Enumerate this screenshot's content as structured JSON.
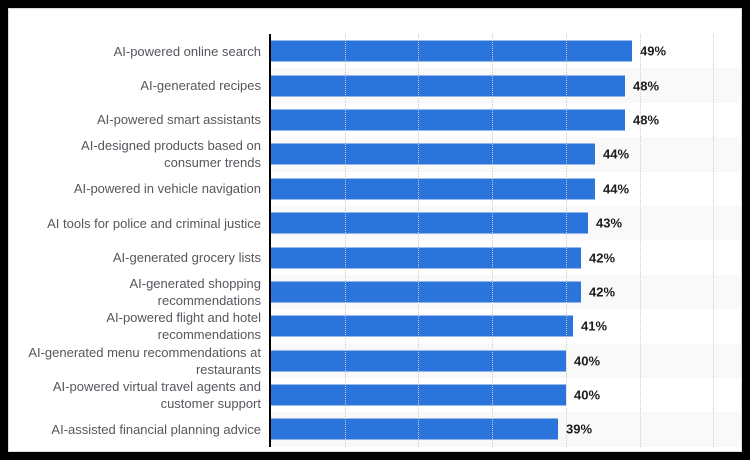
{
  "chart_data": {
    "type": "bar",
    "orientation": "horizontal",
    "title": "",
    "xlabel": "",
    "ylabel": "",
    "xlim": [
      0,
      64
    ],
    "gridlines": [
      10,
      20,
      30,
      40,
      50,
      60
    ],
    "grid_style": "dotted-vertical",
    "legend": "none",
    "value_suffix": "%",
    "categories": [
      "AI-powered online search",
      "AI-generated recipes",
      "AI-powered smart assistants",
      "AI-designed products based on consumer trends",
      "AI-powered in vehicle navigation",
      "AI tools for police and criminal justice",
      "AI-generated grocery lists",
      "AI-generated shopping recommendations",
      "AI-powered flight and hotel recommendations",
      "AI-generated menu recommendations at restaurants",
      "AI-powered virtual travel agents and customer support",
      "AI-assisted financial planning advice"
    ],
    "values": [
      49,
      48,
      48,
      44,
      44,
      43,
      42,
      42,
      41,
      40,
      40,
      39
    ],
    "rows": [
      {
        "label_lines": [
          "AI-powered online search"
        ],
        "value": 49,
        "value_label": "49%"
      },
      {
        "label_lines": [
          "AI-generated recipes"
        ],
        "value": 48,
        "value_label": "48%"
      },
      {
        "label_lines": [
          "AI-powered smart assistants"
        ],
        "value": 48,
        "value_label": "48%"
      },
      {
        "label_lines": [
          "AI-designed products based on",
          "consumer trends"
        ],
        "value": 44,
        "value_label": "44%"
      },
      {
        "label_lines": [
          "AI-powered in vehicle navigation"
        ],
        "value": 44,
        "value_label": "44%"
      },
      {
        "label_lines": [
          "AI tools for police and criminal justice"
        ],
        "value": 43,
        "value_label": "43%"
      },
      {
        "label_lines": [
          "AI-generated grocery lists"
        ],
        "value": 42,
        "value_label": "42%"
      },
      {
        "label_lines": [
          "AI-generated shopping",
          "recommendations"
        ],
        "value": 42,
        "value_label": "42%"
      },
      {
        "label_lines": [
          "AI-powered flight and hotel",
          "recommendations"
        ],
        "value": 41,
        "value_label": "41%"
      },
      {
        "label_lines": [
          "AI-generated menu recommendations at",
          "restaurants"
        ],
        "value": 40,
        "value_label": "40%"
      },
      {
        "label_lines": [
          "AI-powered virtual travel agents and",
          "customer support"
        ],
        "value": 40,
        "value_label": "40%"
      },
      {
        "label_lines": [
          "AI-assisted financial planning advice"
        ],
        "value": 39,
        "value_label": "39%"
      }
    ],
    "colors": {
      "bar": "#2b74dc",
      "row_alt": "#f9f9f9",
      "gridline": "#cbcbcb",
      "axis": "#000000",
      "category_label": "#54575c",
      "value_label": "#1d1d1d",
      "frame": "#000000",
      "card": "#ffffff"
    }
  }
}
